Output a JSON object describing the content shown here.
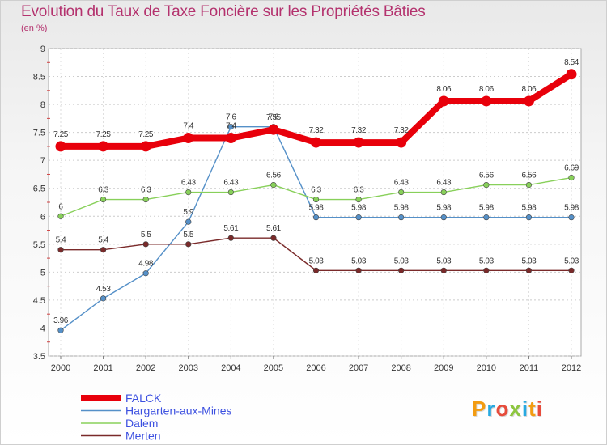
{
  "title": "Evolution du Taux de Taxe Foncière sur les Propriétés Bâties",
  "unit_label": "(en %)",
  "logo": {
    "text": "Proxiti",
    "letter_colors": [
      "#f39c12",
      "#27a9e1",
      "#e74c3c",
      "#8dc63f",
      "#27a9e1",
      "#f39c12",
      "#e74c3c"
    ]
  },
  "chart_data": {
    "type": "line",
    "title": "Evolution du Taux de Taxe Foncière sur les Propriétés Bâties",
    "ylabel": "(en %)",
    "xlabel": "",
    "x": [
      "2000",
      "2001",
      "2002",
      "2003",
      "2004",
      "2005",
      "2006",
      "2007",
      "2008",
      "2009",
      "2010",
      "2011",
      "2012"
    ],
    "ylim": [
      3.5,
      9
    ],
    "yticks": [
      "3.5",
      "4",
      "4.5",
      "5",
      "5.5",
      "6",
      "6.5",
      "7",
      "7.5",
      "8",
      "8.5",
      "9"
    ],
    "grid": true,
    "legend_position": "bottom-left",
    "series": [
      {
        "name": "FALCK",
        "color": "#e8000b",
        "emphasis": true,
        "values": [
          7.25,
          7.25,
          7.25,
          7.4,
          7.4,
          7.55,
          7.32,
          7.32,
          7.32,
          8.06,
          8.06,
          8.06,
          8.54
        ],
        "labels": [
          "7.25",
          "7.25",
          "7.25",
          "7.4",
          "7.4",
          "7.55",
          "7.32",
          "7.32",
          "7.32",
          "8.06",
          "8.06",
          "8.06",
          "8.54"
        ]
      },
      {
        "name": "Hargarten-aux-Mines",
        "color": "#5590c8",
        "emphasis": false,
        "values": [
          3.96,
          4.53,
          4.98,
          5.9,
          7.6,
          7.6,
          5.98,
          5.98,
          5.98,
          5.98,
          5.98,
          5.98,
          5.98
        ],
        "labels": [
          "3.96",
          "4.53",
          "4.98",
          "5.9",
          "7.6",
          "7.6",
          "5.98",
          "5.98",
          "5.98",
          "5.98",
          "5.98",
          "5.98",
          "5.98"
        ]
      },
      {
        "name": "Dalem",
        "color": "#88d05a",
        "emphasis": false,
        "values": [
          6,
          6.3,
          6.3,
          6.43,
          6.43,
          6.56,
          6.3,
          6.3,
          6.43,
          6.43,
          6.56,
          6.56,
          6.69
        ],
        "labels": [
          "6",
          "6.3",
          "6.3",
          "6.43",
          "6.43",
          "6.56",
          "6.3",
          "6.3",
          "6.43",
          "6.43",
          "6.56",
          "6.56",
          "6.69"
        ]
      },
      {
        "name": "Merten",
        "color": "#7a2a2a",
        "emphasis": false,
        "values": [
          5.4,
          5.4,
          5.5,
          5.5,
          5.61,
          5.61,
          5.03,
          5.03,
          5.03,
          5.03,
          5.03,
          5.03,
          5.03
        ],
        "labels": [
          "5.4",
          "5.4",
          "5.5",
          "5.5",
          "5.61",
          "5.61",
          "5.03",
          "5.03",
          "5.03",
          "5.03",
          "5.03",
          "5.03",
          "5.03"
        ]
      }
    ]
  }
}
